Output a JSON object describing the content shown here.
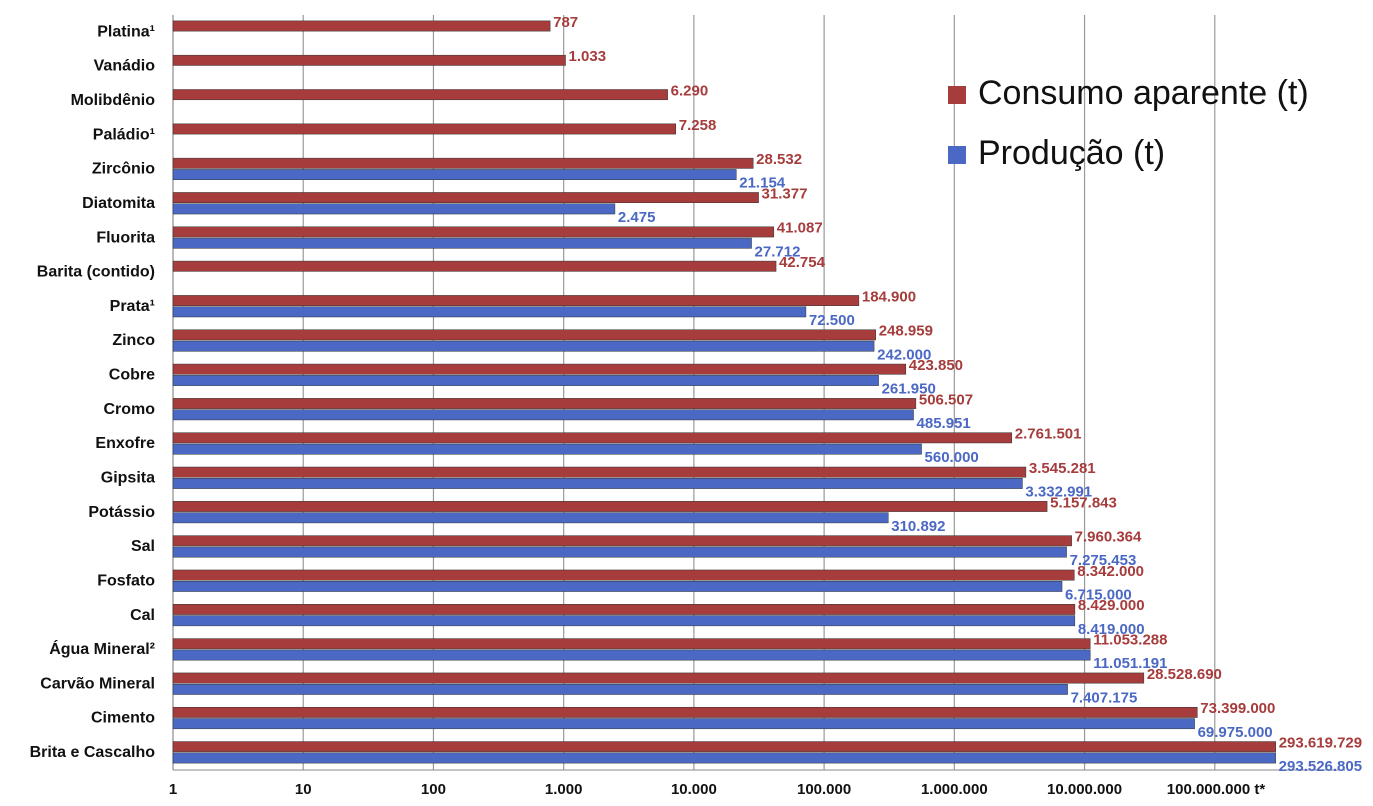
{
  "chart_data": {
    "type": "hbar",
    "log_x": true,
    "grid": true,
    "legend_position": "upper right",
    "categories": [
      "Platina¹",
      "Vanádio",
      "Molibdênio",
      "Paládio¹",
      "Zircônio",
      "Diatomita",
      "Fluorita",
      "Barita (contido)",
      "Prata¹",
      "Zinco",
      "Cobre",
      "Cromo",
      "Enxofre",
      "Gipsita",
      "Potássio",
      "Sal",
      "Fosfato",
      "Cal",
      "Água Mineral²",
      "Carvão Mineral",
      "Cimento",
      "Brita e Cascalho"
    ],
    "series": [
      {
        "name": "Consumo aparente (t)",
        "color": "#a63c3c",
        "values": [
          787,
          1033,
          6290,
          7258,
          28532,
          31377,
          41087,
          42754,
          184900,
          248959,
          423850,
          506507,
          2761501,
          3545281,
          5157843,
          7960364,
          8342000,
          8429000,
          11053288,
          28528690,
          73399000,
          293619729
        ],
        "value_labels": [
          "787",
          "1.033",
          "6.290",
          "7.258",
          "28.532",
          "31.377",
          "41.087",
          "42.754",
          "184.900",
          "248.959",
          "423.850",
          "506.507",
          "2.761.501",
          "3.545.281",
          "5.157.843",
          "7.960.364",
          "8.342.000",
          "8.429.000",
          "11.053.288",
          "28.528.690",
          "73.399.000",
          "293.619.729"
        ]
      },
      {
        "name": "Produção (t)",
        "color": "#4a68c4",
        "values": [
          null,
          null,
          null,
          null,
          21154,
          2475,
          27712,
          null,
          72500,
          242000,
          261950,
          485951,
          560000,
          3332991,
          310892,
          7275453,
          6715000,
          8419000,
          11051191,
          7407175,
          69975000,
          293526805
        ],
        "value_labels": [
          null,
          null,
          null,
          null,
          "21.154",
          "2.475",
          "27.712",
          null,
          "72.500",
          "242.000",
          "261.950",
          "485.951",
          "560.000",
          "3.332.991",
          "310.892",
          "7.275.453",
          "6.715.000",
          "8.419.000",
          "11.051.191",
          "7.407.175",
          "69.975.000",
          "293.526.805"
        ]
      }
    ],
    "xlim": [
      1,
      1000000000
    ],
    "xticks": [
      1,
      10,
      100,
      {
        "value": 1000,
        "label": "1.000"
      },
      {
        "value": 10000,
        "label": "10.000"
      },
      {
        "value": 100000,
        "label": "100.000"
      },
      {
        "value": 1000000,
        "label": "1.000.000"
      },
      {
        "value": 10000000,
        "label": "10.000.000"
      },
      {
        "value": 100000000,
        "label": "100.000.000 t*"
      }
    ]
  }
}
